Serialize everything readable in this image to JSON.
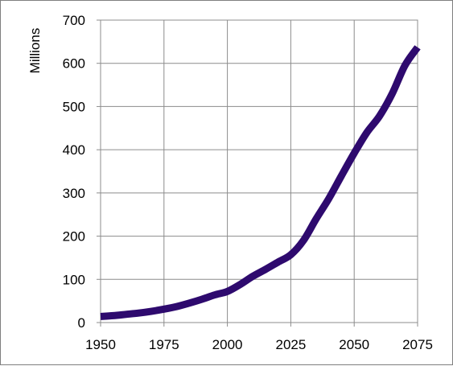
{
  "chart_data": {
    "type": "line",
    "title": "",
    "xlabel": "",
    "ylabel": "Millions",
    "xlim": [
      1950,
      2075
    ],
    "ylim": [
      0,
      700
    ],
    "x_ticks": [
      1950,
      1975,
      2000,
      2025,
      2050,
      2075
    ],
    "y_ticks": [
      0,
      100,
      200,
      300,
      400,
      500,
      600,
      700
    ],
    "grid": true,
    "legend": "none",
    "series": [
      {
        "color": "#2e0a6e",
        "x": [
          1950,
          1955,
          1960,
          1965,
          1970,
          1975,
          1980,
          1985,
          1990,
          1995,
          2000,
          2005,
          2010,
          2015,
          2020,
          2025,
          2030,
          2035,
          2040,
          2045,
          2050,
          2055,
          2060,
          2065,
          2070,
          2075
        ],
        "y": [
          14,
          16,
          19,
          22,
          26,
          31,
          37,
          45,
          54,
          64,
          72,
          88,
          107,
          123,
          140,
          157,
          190,
          240,
          287,
          340,
          392,
          440,
          478,
          530,
          595,
          637
        ]
      }
    ]
  }
}
